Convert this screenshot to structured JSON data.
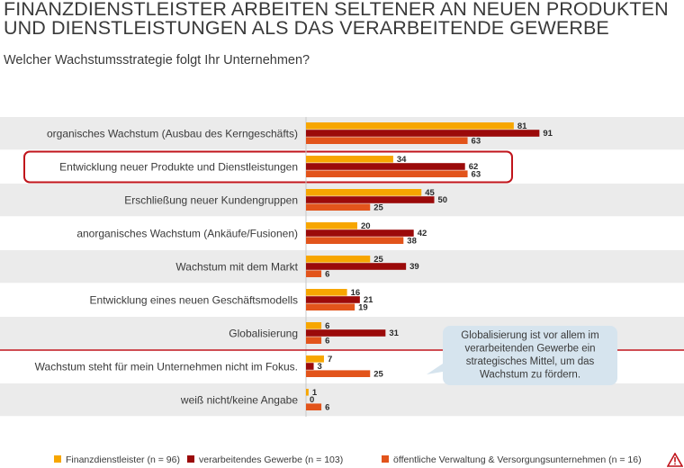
{
  "header": {
    "title": "FINANZDIENSTLEISTER ARBEITEN SELTENER AN NEUEN PRODUKTEN UND DIENSTLEISTUNGEN ALS DAS VERARBEITENDE GEWERBE",
    "subtitle": "Welcher Wachstumsstrategie folgt Ihr Unternehmen?"
  },
  "chart_data": {
    "type": "bar",
    "orientation": "horizontal",
    "categories": [
      "organisches Wachstum (Ausbau des Kerngeschäfts)",
      "Entwicklung neuer Produkte und Dienstleistungen",
      "Erschließung neuer Kundengruppen",
      "anorganisches Wachstum (Ankäufe/Fusionen)",
      "Wachstum mit dem Markt",
      "Entwicklung eines neuen Geschäftsmodells",
      "Globalisierung",
      "Wachstum steht für mein Unternehmen nicht im Fokus.",
      "weiß nicht/keine Angabe"
    ],
    "series": [
      {
        "name": "Finanzdienstleister (n = 96)",
        "color": "#f7a600",
        "values": [
          81,
          34,
          45,
          20,
          25,
          16,
          6,
          7,
          1
        ]
      },
      {
        "name": "verarbeitendes Gewerbe (n = 103)",
        "color": "#9b0a0a",
        "values": [
          91,
          62,
          50,
          42,
          39,
          21,
          31,
          3,
          0
        ]
      },
      {
        "name": "öffentliche Verwaltung & Versorgungsunternehmen (n = 16)",
        "color": "#e2541b",
        "values": [
          63,
          63,
          25,
          38,
          6,
          19,
          6,
          25,
          6
        ]
      }
    ],
    "highlighted_category": "Entwicklung neuer Produkte und Dienstleistungen",
    "legend_position": "bottom",
    "callout": "Globalisierung ist vor allem im verarbeitenden Gewerbe ein strategisches Mittel, um das Wachstum zu fördern.",
    "row_shading": "alternating light gray",
    "separator": "red line between growth strategies and other answers"
  }
}
